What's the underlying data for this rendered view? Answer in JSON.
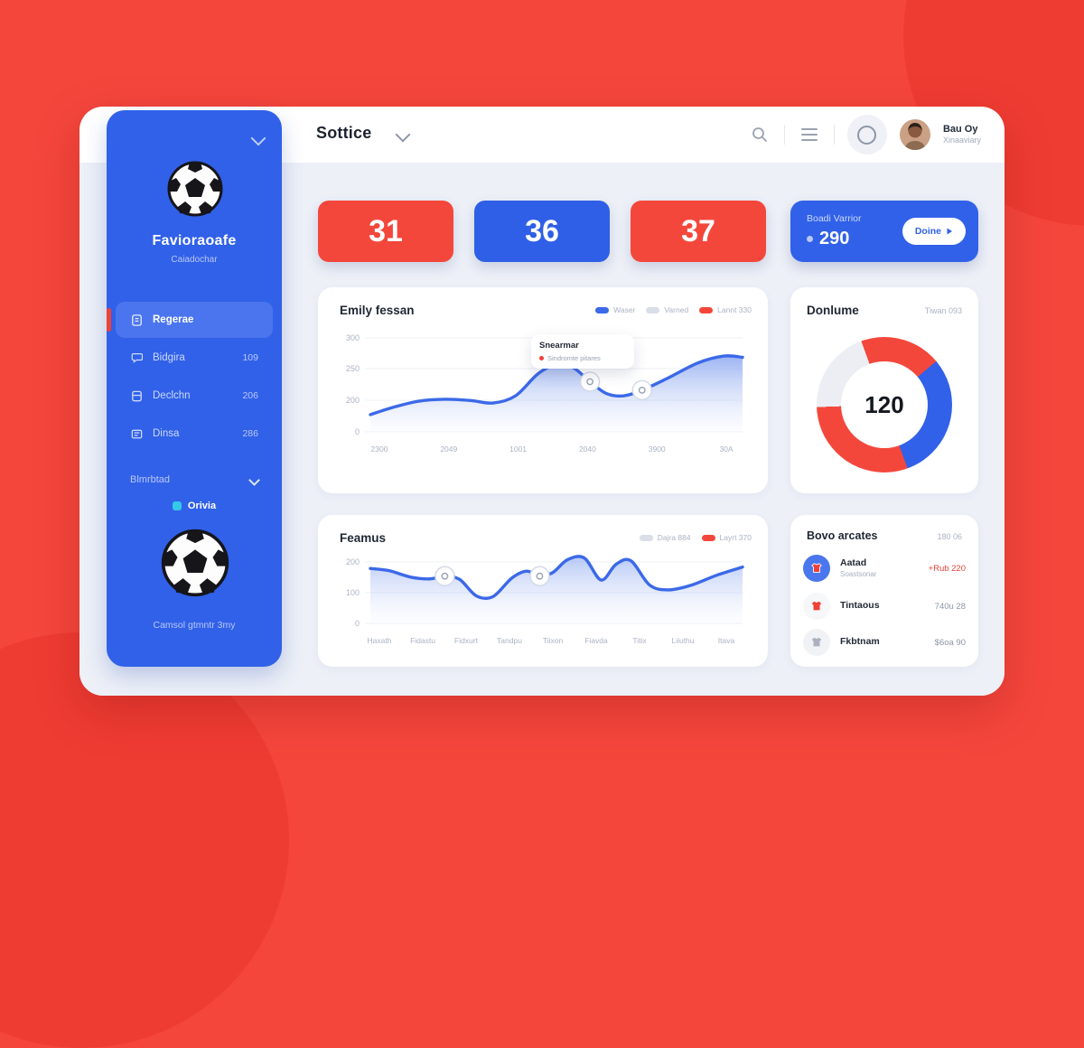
{
  "theme": {
    "red": "#f4473b",
    "blue": "#2f5fe6",
    "sidebar_blue": "#3161e8",
    "content_bg": "#edf0f7",
    "gray_text": "#aab2c2",
    "accent_red": "#ef4136",
    "cyan": "#35c8e8"
  },
  "header": {
    "title": "Sottice",
    "user": {
      "name": "Bau Oy",
      "role": "Xinaaviary"
    }
  },
  "sidebar": {
    "title": "Favioraoafe",
    "subtitle": "Caiadochar",
    "items": [
      {
        "label": "Regerae",
        "badge": ""
      },
      {
        "label": "Bidgira",
        "badge": "109"
      },
      {
        "label": "Declchn",
        "badge": "206"
      },
      {
        "label": "Dinsa",
        "badge": "286"
      }
    ],
    "section_label": "Blmrbtad",
    "badge_label": "Orivia",
    "caption": "Camsol gtmntr 3my"
  },
  "stats": [
    {
      "value": "31",
      "color": "#f4473b"
    },
    {
      "value": "36",
      "color": "#2f5fe6"
    },
    {
      "value": "37",
      "color": "#f4473b"
    }
  ],
  "score_card": {
    "label": "Boadi Varrior",
    "value": "290",
    "button_label": "Doine"
  },
  "chart1": {
    "title": "Emily fessan",
    "legend": [
      {
        "label": "Waser",
        "color": "#3b69e8"
      },
      {
        "label": "Varned",
        "color": "#d9dee7"
      },
      {
        "label": "Lannt 330",
        "color": "#f4473b"
      }
    ],
    "tooltip": {
      "title": "Snearmar",
      "text": "Sindromte pitares"
    }
  },
  "donut": {
    "title": "Donlume",
    "meta": "Tiwan 093"
  },
  "chart2": {
    "title": "Feamus",
    "legend": [
      {
        "label": "Dajra 884",
        "color": "#d9dee7"
      },
      {
        "label": "Layrt 370",
        "color": "#f4473b"
      }
    ]
  },
  "activity": {
    "title": "Bovo arcates",
    "meta": "180 06",
    "rows": [
      {
        "name": "Aatad",
        "sub": "Soastsonar",
        "value": "+Rub 220",
        "value_color": "#e8433a",
        "avatar_bg": "#4a76ee",
        "shirt_color": "#ffffff"
      },
      {
        "name": "Tintaous",
        "sub": "",
        "value": "740u 28",
        "value_color": "#8d95a5",
        "avatar_bg": "#f6f7f9",
        "shirt_color": "#e8433a"
      },
      {
        "name": "Fkbtnam",
        "sub": "",
        "value": "$6oa 90",
        "value_color": "#8d95a5",
        "avatar_bg": "#f1f2f5",
        "shirt_color": "#aab2c0"
      }
    ]
  },
  "chart_data": [
    {
      "id": "performance-area",
      "type": "area",
      "title": "Emily fessan",
      "ylim": [
        0,
        300
      ],
      "yticks": [
        "300",
        "250",
        "200",
        "0"
      ],
      "xticks": [
        "2300",
        "2049",
        "1001",
        "2040",
        "3900",
        "30A"
      ],
      "grid": true,
      "legend_position": "top-right",
      "series": [
        {
          "name": "Waser",
          "color": "#3b69e8",
          "x": [
            0,
            0.06,
            0.13,
            0.2,
            0.27,
            0.33,
            0.39,
            0.45,
            0.5,
            0.545,
            0.59,
            0.635,
            0.68,
            0.73,
            0.8,
            0.88,
            0.95,
            1.0
          ],
          "y": [
            55,
            78,
            98,
            104,
            100,
            92,
            115,
            185,
            215,
            205,
            160,
            122,
            115,
            133,
            172,
            220,
            242,
            238
          ]
        }
      ],
      "markers": [
        {
          "x": 0.59,
          "y": 160
        },
        {
          "x": 0.73,
          "y": 133
        }
      ]
    },
    {
      "id": "donut-split",
      "type": "pie",
      "title": "Donlume",
      "center_value": "120",
      "segments": [
        {
          "label": "red-top",
          "start_deg": 0,
          "end_deg": 50,
          "color": "#f4473b"
        },
        {
          "label": "blue",
          "start_deg": 50,
          "end_deg": 160,
          "color": "#3161e8"
        },
        {
          "label": "red-bottom",
          "start_deg": 160,
          "end_deg": 268,
          "color": "#f4473b"
        },
        {
          "label": "gray",
          "start_deg": 268,
          "end_deg": 340,
          "color": "#eceef3"
        },
        {
          "label": "red-tail",
          "start_deg": 340,
          "end_deg": 360,
          "color": "#f4473b"
        }
      ]
    },
    {
      "id": "feamus-line",
      "type": "line",
      "title": "Feamus",
      "ylim": [
        0,
        250
      ],
      "yticks": [
        "200",
        "100",
        "0"
      ],
      "xticks": [
        "Haxath",
        "Fidastu",
        "Fidxurt",
        "Tandpu",
        "Tiixon",
        "Fiavda",
        "Titix",
        "Liiuthu",
        "Itava"
      ],
      "grid": true,
      "series": [
        {
          "name": "Layrt",
          "color": "#3b69e8",
          "x": [
            0,
            0.05,
            0.11,
            0.16,
            0.2,
            0.24,
            0.285,
            0.33,
            0.38,
            0.42,
            0.455,
            0.49,
            0.53,
            0.575,
            0.62,
            0.66,
            0.7,
            0.75,
            0.8,
            0.86,
            0.93,
            1.0
          ],
          "y": [
            200,
            192,
            168,
            162,
            172,
            160,
            100,
            98,
            165,
            190,
            172,
            185,
            232,
            238,
            158,
            215,
            228,
            140,
            122,
            138,
            175,
            205
          ]
        }
      ],
      "markers": [
        {
          "x": 0.2,
          "y": 172
        },
        {
          "x": 0.455,
          "y": 172
        }
      ]
    }
  ]
}
